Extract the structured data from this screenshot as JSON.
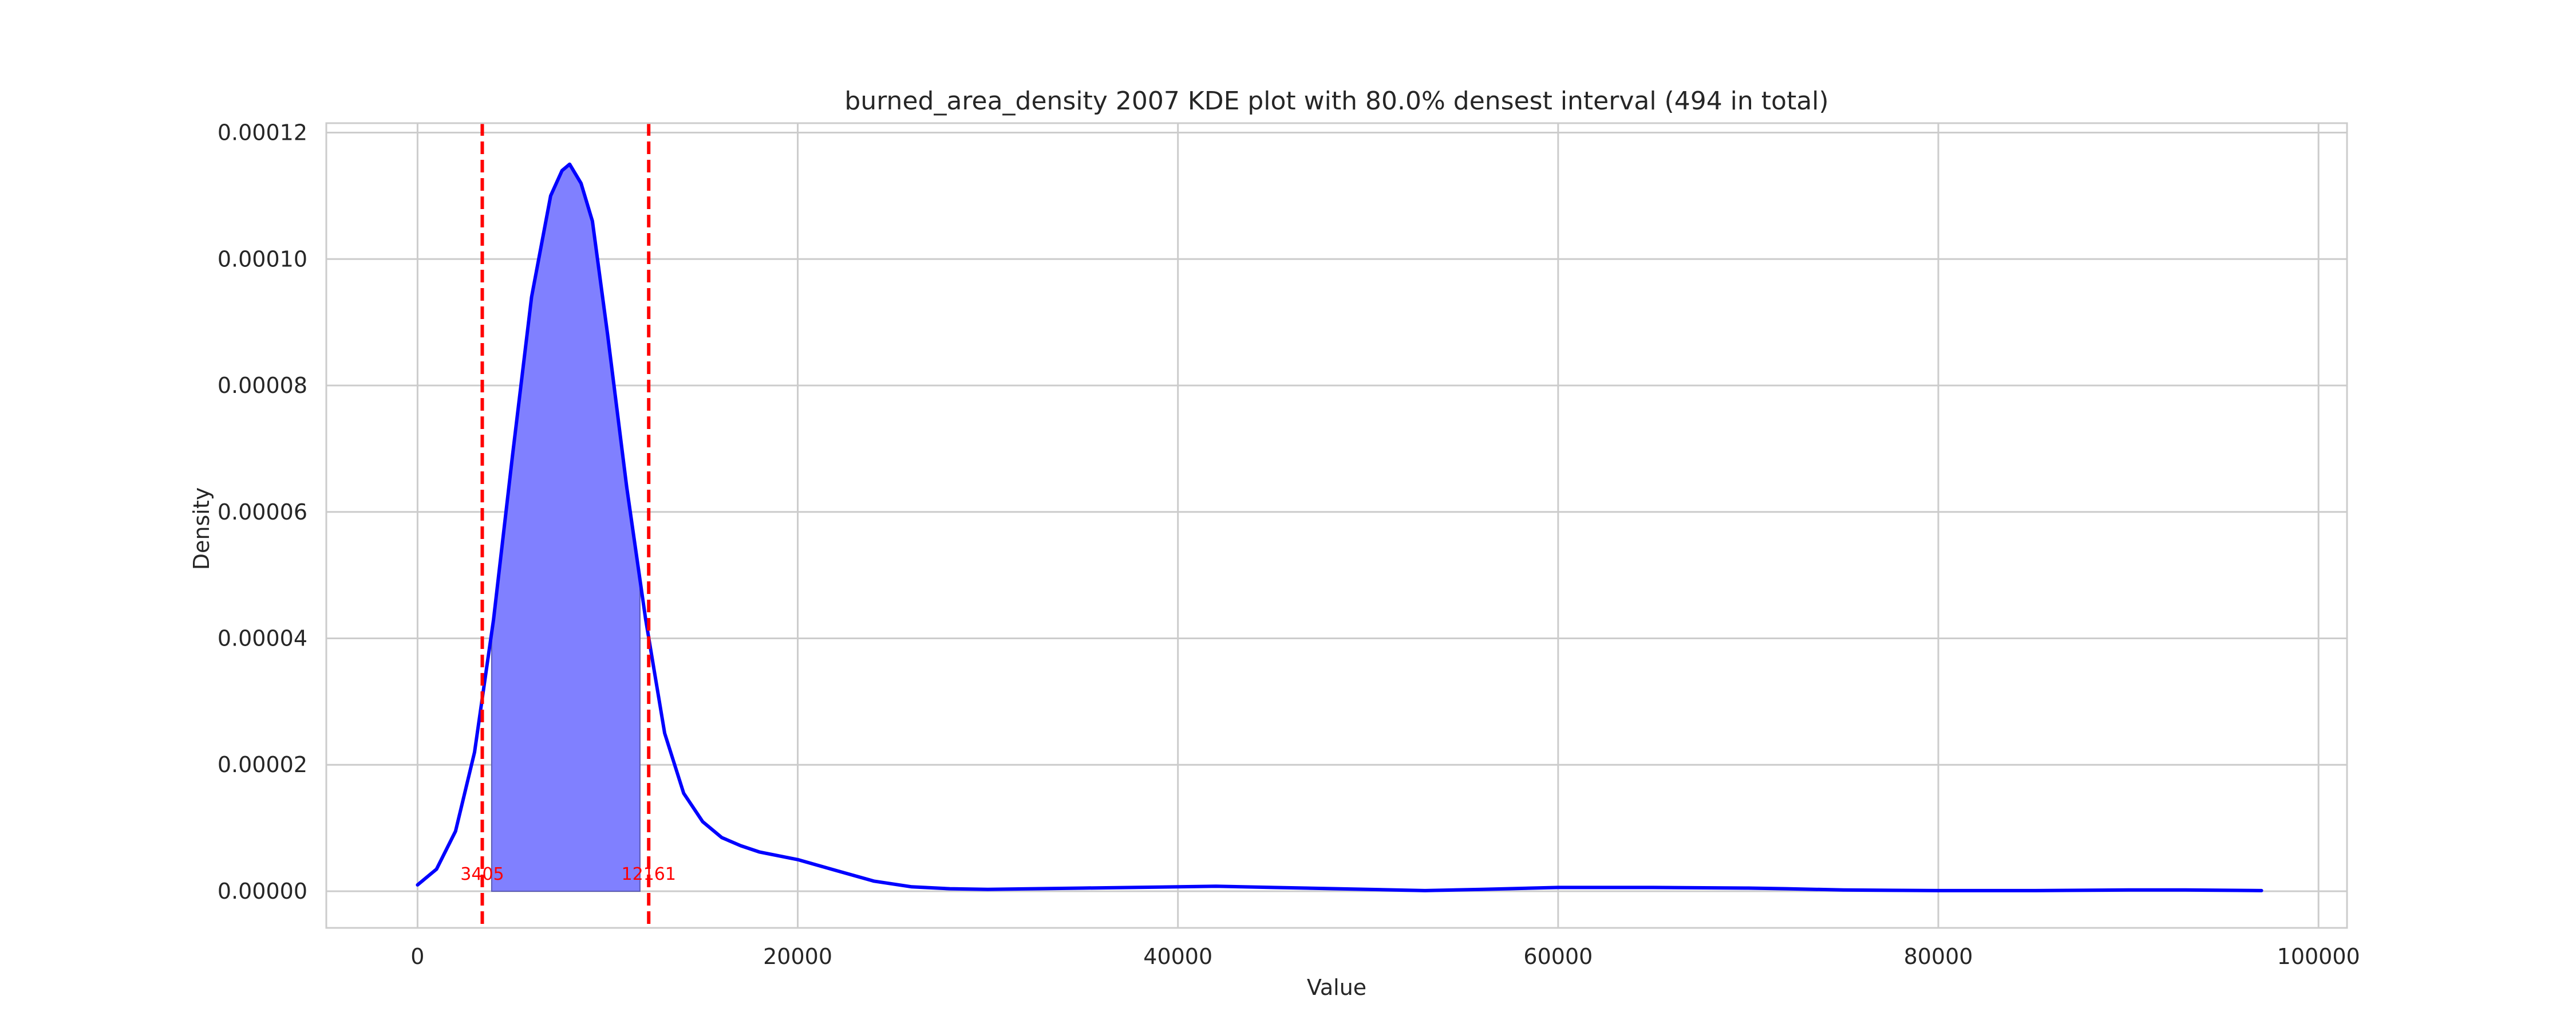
{
  "chart_data": {
    "type": "area",
    "title": "burned_area_density 2007 KDE plot with 80.0% densest interval (494 in total)",
    "xlabel": "Value",
    "ylabel": "Density",
    "xlim": [
      -4800,
      101500
    ],
    "ylim": [
      -5.8e-06,
      0.0001215
    ],
    "x_ticks": [
      0,
      20000,
      40000,
      60000,
      80000,
      100000
    ],
    "x_tick_labels": [
      "0",
      "20000",
      "40000",
      "60000",
      "80000",
      "100000"
    ],
    "y_ticks": [
      0,
      2e-05,
      4e-05,
      6e-05,
      8e-05,
      0.0001,
      0.00012
    ],
    "y_tick_labels": [
      "0.00000",
      "0.00002",
      "0.00004",
      "0.00006",
      "0.00008",
      "0.00010",
      "0.00012"
    ],
    "grid": true,
    "colors": {
      "curve": "#0000ff",
      "fill": "#8080ff",
      "interval_lines": "#ff0000",
      "grid": "#cccccc",
      "spine": "#cccccc"
    },
    "series": [
      {
        "x": [
          0,
          1000,
          2000,
          3000,
          4000,
          5000,
          6000,
          7000,
          7600,
          8000,
          8600,
          9200,
          10000,
          11000,
          12000,
          13000,
          14000,
          15000,
          16000,
          17000,
          18000,
          20000,
          22000,
          24000,
          26000,
          28000,
          30000,
          35000,
          40000,
          42000,
          45000,
          50000,
          53000,
          56000,
          60000,
          65000,
          70000,
          72000,
          75000,
          80000,
          85000,
          90000,
          93000,
          97000
        ],
        "y": [
          1e-06,
          3.5e-06,
          9.5e-06,
          2.2e-05,
          4.3e-05,
          6.9e-05,
          9.4e-05,
          0.00011,
          0.000114,
          0.000115,
          0.000112,
          0.000106,
          8.8e-05,
          6.4e-05,
          4.3e-05,
          2.5e-05,
          1.55e-05,
          1.1e-05,
          8.5e-06,
          7.2e-06,
          6.2e-06,
          5e-06,
          3.3e-06,
          1.6e-06,
          7e-07,
          4e-07,
          3e-07,
          5e-07,
          7e-07,
          8e-07,
          6e-07,
          3e-07,
          1e-07,
          3e-07,
          6e-07,
          6e-07,
          5e-07,
          4e-07,
          2e-07,
          1e-07,
          1e-07,
          2e-07,
          2e-07,
          1e-07
        ]
      }
    ],
    "interval": {
      "low": 3405,
      "high": 12161,
      "fill_low": 3900,
      "fill_high": 11700,
      "low_label": "3405",
      "high_label": "12161",
      "label_y": 1.8e-06
    }
  }
}
